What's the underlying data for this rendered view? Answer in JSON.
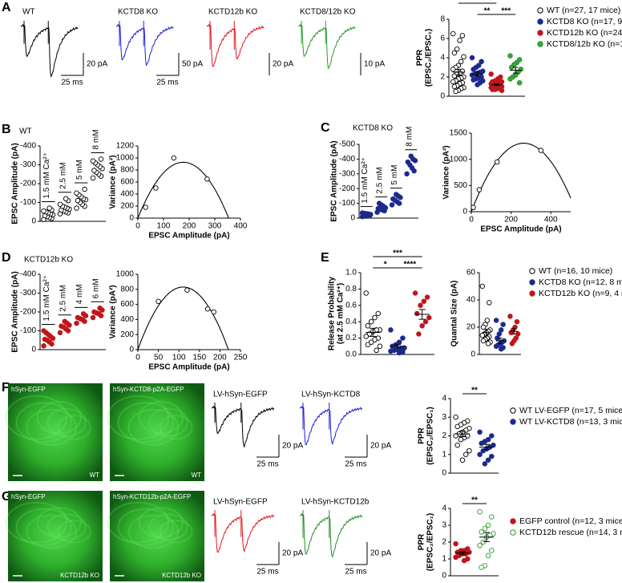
{
  "A": {
    "letter": "A",
    "traces": [
      {
        "label": "WT",
        "color": "#000000",
        "scale_y": "20 pA",
        "scale_x": "25 ms"
      },
      {
        "label": "KCTD8 KO",
        "color": "#1f1fe0",
        "scale_y": "50 pA",
        "scale_x": "25 ms"
      },
      {
        "label": "KCTD12b KO",
        "color": "#e8141b",
        "scale_y": "20 pA"
      },
      {
        "label": "KCTD8/12b KO",
        "color": "#2a9a2a",
        "scale_y": "10 pA"
      }
    ],
    "ppr": {
      "ylabel": [
        "PPR",
        "(EPSC₂/EPSC₁)"
      ],
      "ylim": [
        0,
        8
      ],
      "yticks": [
        0,
        2,
        4,
        6,
        8
      ],
      "groups": [
        {
          "name": "WT (n=27, 17 mice)",
          "fill": "#ffffff",
          "stroke": "#000000",
          "values": [
            6.5,
            6.3,
            5.8,
            4.9,
            4.5,
            4.1,
            3.6,
            3.2,
            3.0,
            2.8,
            2.6,
            2.4,
            2.3,
            2.1,
            2.0,
            1.9,
            1.8,
            1.6,
            1.5,
            1.4,
            1.3,
            1.1,
            1.0,
            0.9,
            0.8,
            0.6,
            0.5
          ],
          "mean": 2.5,
          "sem": 0.3
        },
        {
          "name": "KCTD8 KO (n=17, 9 mice)",
          "fill": "#1c2a8c",
          "stroke": "#1c2a8c",
          "values": [
            4.0,
            3.6,
            3.2,
            3.0,
            2.8,
            2.6,
            2.5,
            2.4,
            2.3,
            2.2,
            2.0,
            1.9,
            1.8,
            1.7,
            1.6,
            1.4,
            1.2
          ],
          "mean": 2.3,
          "sem": 0.2
        },
        {
          "name": "KCTD12b KO (n=24, 11 mice)",
          "fill": "#c0161b",
          "stroke": "#c0161b",
          "values": [
            2.3,
            2.0,
            1.8,
            1.6,
            1.5,
            1.5,
            1.4,
            1.4,
            1.3,
            1.3,
            1.2,
            1.2,
            1.1,
            1.1,
            1.0,
            1.0,
            1.0,
            0.9,
            0.9,
            0.8,
            0.8,
            0.7,
            0.7,
            0.6
          ],
          "mean": 1.2,
          "sem": 0.08
        },
        {
          "name": "KCTD8/12b KO (n=11, 7 mice)",
          "fill": "#3aa83a",
          "stroke": "#2a8a2a",
          "values": [
            4.2,
            3.8,
            3.5,
            3.3,
            3.0,
            2.8,
            2.5,
            2.2,
            2.0,
            1.8,
            1.4
          ],
          "mean": 2.7,
          "sem": 0.3
        }
      ],
      "sig": [
        {
          "label": "**",
          "pair": [
            0,
            2
          ]
        },
        {
          "label": "**",
          "pair": [
            1,
            2
          ]
        },
        {
          "label": "***",
          "pair": [
            2,
            3
          ]
        }
      ]
    }
  },
  "B": {
    "letter": "B",
    "label": "WT",
    "amp": {
      "ylabel": "EPSC Amplitude (pA)",
      "ylim": [
        0,
        -400
      ],
      "yticks": [
        -400,
        -300,
        -200,
        -100,
        0
      ],
      "groups": [
        {
          "label": "1.5 mM Ca²⁺",
          "fill": "#ffffff",
          "stroke": "#000000",
          "values": [
            -10,
            -15,
            -20,
            -25,
            -30,
            -35,
            -40,
            -45,
            -50,
            -55,
            -60,
            -70
          ]
        },
        {
          "label": "2.5 mM",
          "fill": "#ffffff",
          "stroke": "#000000",
          "values": [
            -40,
            -45,
            -50,
            -55,
            -60,
            -65,
            -70,
            -75,
            -80,
            -90,
            -110,
            -120
          ]
        },
        {
          "label": "5 mM",
          "fill": "#ffffff",
          "stroke": "#000000",
          "values": [
            -70,
            -80,
            -90,
            -100,
            -110,
            -115,
            -120,
            -130,
            -140,
            -150,
            -170
          ]
        },
        {
          "label": "8 mM",
          "fill": "#ffffff",
          "stroke": "#000000",
          "values": [
            -230,
            -240,
            -250,
            -260,
            -270,
            -280,
            -290,
            -300,
            -310,
            -320,
            -330
          ]
        }
      ]
    },
    "var": {
      "ylabel": "Variance (pA²)",
      "xlabel": "EPSC Amplitude (pA)",
      "xlim": [
        0,
        400
      ],
      "xticks": [
        0,
        100,
        200,
        300,
        400
      ],
      "ylim": [
        0,
        1200
      ],
      "yticks": [
        0,
        200,
        400,
        600,
        800,
        1000,
        1200
      ],
      "x": [
        30,
        70,
        140,
        270
      ],
      "y": [
        180,
        500,
        1000,
        650
      ]
    }
  },
  "C": {
    "letter": "C",
    "label": "KCTD8 KO",
    "amp": {
      "ylabel": "EPSC Amplitude (pA)",
      "ylim": [
        0,
        -500
      ],
      "yticks": [
        -500,
        -400,
        -300,
        -200,
        -100,
        0
      ],
      "groups": [
        {
          "label": "1.5 mM Ca²⁺",
          "fill": "#1c2a8c",
          "stroke": "#1c2a8c",
          "values": [
            -10,
            -15,
            -18,
            -20,
            -22,
            -25,
            -28,
            -30,
            -32,
            -35
          ]
        },
        {
          "label": "2.5 mM",
          "fill": "#1c2a8c",
          "stroke": "#1c2a8c",
          "values": [
            -40,
            -50,
            -55,
            -60,
            -65,
            -70,
            -80,
            -90,
            -100
          ]
        },
        {
          "label": "5 mM",
          "fill": "#1c2a8c",
          "stroke": "#1c2a8c",
          "values": [
            -90,
            -100,
            -110,
            -120,
            -130,
            -140,
            -150,
            -160
          ]
        },
        {
          "label": "8 mM",
          "fill": "#1c2a8c",
          "stroke": "#1c2a8c",
          "values": [
            -300,
            -320,
            -340,
            -360,
            -380,
            -390,
            -400,
            -420
          ]
        }
      ]
    },
    "var": {
      "ylabel": "Variance (pA²)",
      "xlabel": "EPSC Amplitude (pA)",
      "xlim": [
        0,
        500
      ],
      "xticks": [
        0,
        200,
        400
      ],
      "ylim": [
        0,
        1500
      ],
      "yticks": [
        0,
        500,
        1000,
        1500
      ],
      "x": [
        10,
        40,
        130,
        350
      ],
      "y": [
        80,
        420,
        950,
        1170
      ]
    }
  },
  "D": {
    "letter": "D",
    "label": "KCTD12b KO",
    "amp": {
      "ylabel": "EPSC Amplitude (pA)",
      "ylim": [
        0,
        -400
      ],
      "yticks": [
        -400,
        -300,
        -200,
        -100,
        0
      ],
      "groups": [
        {
          "label": "1.5 mM Ca²⁺",
          "fill": "#c0161b",
          "stroke": "#c0161b",
          "values": [
            -20,
            -30,
            -40,
            -50,
            -55,
            -60,
            -70,
            -80,
            -90,
            -100
          ]
        },
        {
          "label": "2.5 mM",
          "fill": "#c0161b",
          "stroke": "#c0161b",
          "values": [
            -90,
            -100,
            -110,
            -120,
            -125,
            -130,
            -140,
            -150
          ]
        },
        {
          "label": "4 mM",
          "fill": "#c0161b",
          "stroke": "#c0161b",
          "values": [
            -140,
            -150,
            -160,
            -165,
            -170,
            -180,
            -190
          ]
        },
        {
          "label": "6 mM",
          "fill": "#c0161b",
          "stroke": "#c0161b",
          "values": [
            -170,
            -180,
            -190,
            -195,
            -200,
            -210,
            -220
          ]
        }
      ]
    },
    "var": {
      "ylabel": "Variance (pA²)",
      "xlabel": "EPSC Amplitude (pA)",
      "xlim": [
        0,
        250
      ],
      "xticks": [
        0,
        50,
        100,
        150,
        200,
        250
      ],
      "ylim": [
        0,
        1000
      ],
      "yticks": [
        0,
        200,
        400,
        600,
        800,
        1000
      ],
      "x": [
        50,
        120,
        170,
        185
      ],
      "y": [
        640,
        790,
        540,
        500
      ]
    }
  },
  "E": {
    "letter": "E",
    "pr": {
      "ylabel": [
        "Release Probability",
        "(at 2.5 mM Ca²⁺)"
      ],
      "ylim": [
        0,
        1
      ],
      "yticks": [
        {
          "value": 0,
          "label": "0.0"
        },
        {
          "value": 0.2,
          "label": "0.2"
        },
        {
          "value": 0.4,
          "label": "0.4"
        },
        {
          "value": 0.6,
          "label": "0.6"
        },
        {
          "value": 0.8,
          "label": "0.8"
        },
        {
          "value": 1,
          "label": "1.0"
        }
      ],
      "groups": [
        {
          "name": "WT (n=16, 10 mice)",
          "fill": "#ffffff",
          "stroke": "#000000",
          "values": [
            0.75,
            0.5,
            0.45,
            0.4,
            0.35,
            0.3,
            0.3,
            0.28,
            0.25,
            0.22,
            0.2,
            0.18,
            0.15,
            0.12,
            0.1,
            0.05
          ],
          "mean": 0.27,
          "sem": 0.05
        },
        {
          "name": "KCTD8 KO (n=12, 8 mice)",
          "fill": "#1c2a8c",
          "stroke": "#1c2a8c",
          "values": [
            0.3,
            0.2,
            0.15,
            0.12,
            0.1,
            0.08,
            0.07,
            0.06,
            0.05,
            0.04,
            0.03,
            0.02
          ],
          "mean": 0.1,
          "sem": 0.02
        },
        {
          "name": "KCTD12b KO (n=9, 4 mice)",
          "fill": "#c0161b",
          "stroke": "#c0161b",
          "values": [
            0.75,
            0.7,
            0.65,
            0.6,
            0.5,
            0.45,
            0.4,
            0.35,
            0.25
          ],
          "mean": 0.49,
          "sem": 0.06
        }
      ],
      "sig": [
        {
          "label": "*",
          "pair": [
            0,
            1
          ]
        },
        {
          "label": "****",
          "pair": [
            1,
            2
          ]
        },
        {
          "label": "***",
          "pair": [
            0,
            2
          ]
        }
      ]
    },
    "qs": {
      "ylabel": "Quantal Size (pA)",
      "ylim": [
        0,
        60
      ],
      "yticks": [
        0,
        20,
        40,
        60
      ],
      "groups": [
        {
          "fill": "#ffffff",
          "stroke": "#000000",
          "values": [
            50,
            38,
            25,
            22,
            20,
            18,
            17,
            16,
            15,
            14,
            13,
            12,
            11,
            10,
            9,
            8
          ],
          "mean": 16,
          "sem": 2.5
        },
        {
          "fill": "#1c2a8c",
          "stroke": "#1c2a8c",
          "values": [
            25,
            22,
            18,
            15,
            12,
            10,
            9,
            8,
            7,
            6,
            5,
            4
          ],
          "mean": 10,
          "sem": 2
        },
        {
          "fill": "#c0161b",
          "stroke": "#c0161b",
          "values": [
            28,
            24,
            20,
            18,
            16,
            15,
            12,
            10,
            8
          ],
          "mean": 17,
          "sem": 2
        }
      ]
    }
  },
  "F": {
    "letter": "F",
    "images": [
      {
        "label": "hSyn-EGFP",
        "corner": "WT"
      },
      {
        "label": "hSyn-KCTD8-p2A-EGFP",
        "corner": "WT"
      }
    ],
    "traces": [
      {
        "label": "LV-hSyn-EGFP",
        "color": "#000000",
        "scale_y": "20 pA",
        "scale_x": "25 ms"
      },
      {
        "label": "LV-hSyn-KCTD8",
        "color": "#1f1fe0",
        "scale_y": "20 pA",
        "scale_x": "25 ms"
      }
    ],
    "ppr": {
      "ylabel": [
        "PPR",
        "(EPSC₂/EPSC₁)"
      ],
      "ylim": [
        0,
        4
      ],
      "yticks": [
        0,
        1,
        2,
        3,
        4
      ],
      "groups": [
        {
          "name": "WT LV-EGFP (n=17, 5 mice)",
          "fill": "#ffffff",
          "stroke": "#000000",
          "values": [
            3.0,
            2.8,
            2.7,
            2.6,
            2.5,
            2.4,
            2.3,
            2.2,
            2.1,
            2.0,
            2.0,
            1.9,
            1.8,
            1.5,
            1.2,
            1.0,
            0.7
          ],
          "mean": 2.1,
          "sem": 0.15
        },
        {
          "name": "WT LV-KCTD8 (n=13, 3 mice)",
          "fill": "#1c2a8c",
          "stroke": "#1c2a8c",
          "values": [
            2.2,
            2.0,
            1.8,
            1.7,
            1.6,
            1.5,
            1.4,
            1.3,
            1.2,
            1.0,
            0.9,
            0.7,
            0.5
          ],
          "mean": 1.4,
          "sem": 0.14
        }
      ],
      "sig": [
        {
          "label": "**",
          "pair": [
            0,
            1
          ]
        }
      ]
    }
  },
  "G": {
    "letter": "G",
    "images": [
      {
        "label": "hSyn-EGFP",
        "corner": "KCTD12b KO"
      },
      {
        "label": "hSyn-KCTD12b-p2A-EGFP",
        "corner": "KCTD12b KO"
      }
    ],
    "traces": [
      {
        "label": "LV-hSyn-EGFP",
        "color": "#e8141b",
        "scale_y": "20 pA",
        "scale_x": "25 ms"
      },
      {
        "label": "LV-hSyn-KCTD12b",
        "color": "#2a8a2a",
        "scale_y": "20 pA",
        "scale_x": "25 ms"
      }
    ],
    "ppr": {
      "ylabel": [
        "PPR",
        "(EPSC₂/EPSC₁)"
      ],
      "ylim": [
        0,
        4
      ],
      "yticks": [
        0,
        1,
        2,
        3,
        4
      ],
      "groups": [
        {
          "name": "EGFP control (n=12, 3 mice)",
          "fill": "#c0161b",
          "stroke": "#c0161b",
          "values": [
            1.9,
            1.6,
            1.5,
            1.5,
            1.4,
            1.4,
            1.3,
            1.3,
            1.2,
            1.1,
            1.0,
            0.9
          ],
          "mean": 1.35,
          "sem": 0.08
        },
        {
          "name": "KCTD12b rescue (n=14, 3 mice)",
          "fill": "#ffffff",
          "stroke": "#2a9a2a",
          "values": [
            3.8,
            3.5,
            3.0,
            2.8,
            2.6,
            2.5,
            2.4,
            2.3,
            2.0,
            1.8,
            1.5,
            1.2,
            0.6,
            0.5
          ],
          "mean": 2.3,
          "sem": 0.27
        }
      ],
      "sig": [
        {
          "label": "**",
          "pair": [
            0,
            1
          ]
        }
      ]
    }
  }
}
